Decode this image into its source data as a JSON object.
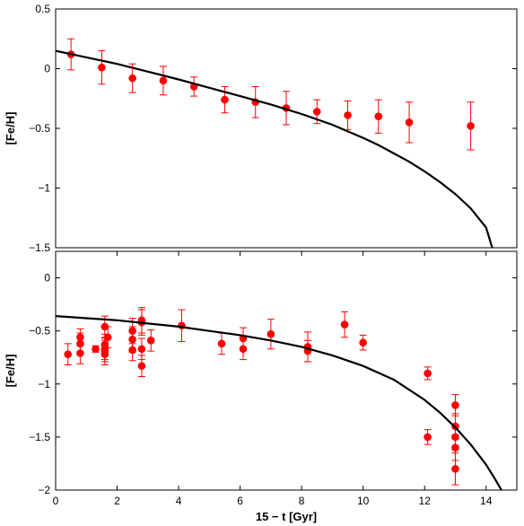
{
  "chart_data": [
    {
      "type": "scatter",
      "panel": "top",
      "xlabel": "",
      "ylabel": "[Fe/H]",
      "xlim": [
        0,
        15
      ],
      "ylim": [
        -1.5,
        0.5
      ],
      "xticks": [],
      "yticks": [
        0.5,
        0,
        -0.5,
        -1,
        -1.5
      ],
      "ytick_labels": [
        "0.5",
        "0",
        "−0.5",
        "−1",
        "−1.5"
      ],
      "grid": false,
      "legend": "none",
      "colors": {
        "points": "#ff0000",
        "model": "#000000"
      },
      "series": [
        {
          "kind": "points-with-error-bars",
          "x": [
            0.5,
            1.5,
            2.5,
            3.5,
            4.5,
            5.5,
            6.5,
            7.5,
            8.5,
            9.5,
            10.5,
            11.5,
            13.5
          ],
          "y": [
            0.12,
            0.01,
            -0.08,
            -0.1,
            -0.15,
            -0.26,
            -0.28,
            -0.33,
            -0.36,
            -0.39,
            -0.4,
            -0.45,
            -0.48
          ],
          "yerr": [
            0.13,
            0.14,
            0.12,
            0.12,
            0.08,
            0.11,
            0.13,
            0.14,
            0.1,
            0.12,
            0.14,
            0.17,
            0.2
          ]
        },
        {
          "kind": "model-curve",
          "x": [
            0,
            1,
            2,
            3,
            4,
            5,
            6,
            7,
            8,
            9,
            10,
            10.5,
            11,
            11.5,
            12,
            12.5,
            13,
            13.5,
            14,
            14.2
          ],
          "y": [
            0.15,
            0.095,
            0.04,
            -0.025,
            -0.09,
            -0.16,
            -0.23,
            -0.3,
            -0.38,
            -0.47,
            -0.58,
            -0.64,
            -0.71,
            -0.78,
            -0.86,
            -0.95,
            -1.05,
            -1.17,
            -1.33,
            -1.5
          ]
        }
      ]
    },
    {
      "type": "scatter",
      "panel": "bottom",
      "xlabel": "15 − t [Gyr]",
      "ylabel": "[Fe/H]",
      "xlim": [
        0,
        15
      ],
      "ylim": [
        -2,
        0.25
      ],
      "xticks": [
        0,
        2,
        4,
        6,
        8,
        10,
        12,
        14
      ],
      "xtick_labels": [
        "0",
        "2",
        "4",
        "6",
        "8",
        "10",
        "12",
        "14"
      ],
      "yticks": [
        0,
        -0.5,
        -1,
        -1.5,
        -2
      ],
      "ytick_labels": [
        "0",
        "−0.5",
        "−1",
        "−1.5",
        "−2"
      ],
      "grid": false,
      "legend": "none",
      "colors": {
        "points": "#ff0000",
        "model": "#000000"
      },
      "series": [
        {
          "kind": "points-with-error-bars",
          "x": [
            0.4,
            0.8,
            0.8,
            0.8,
            1.3,
            1.6,
            1.6,
            1.6,
            1.6,
            1.6,
            1.7,
            2.5,
            2.5,
            2.5,
            2.8,
            2.8,
            2.8,
            2.8,
            3.1,
            4.1,
            5.4,
            6.1,
            6.1,
            7.0,
            8.2,
            8.2,
            9.4,
            10.0,
            12.1,
            12.1,
            13.0,
            13.0,
            13.0,
            13.0,
            13.0
          ],
          "y": [
            -0.72,
            -0.56,
            -0.62,
            -0.71,
            -0.67,
            -0.46,
            -0.63,
            -0.67,
            -0.69,
            -0.72,
            -0.56,
            -0.5,
            -0.58,
            -0.68,
            -0.4,
            -0.67,
            -0.83,
            -0.42,
            -0.59,
            -0.45,
            -0.62,
            -0.57,
            -0.67,
            -0.53,
            -0.65,
            -0.69,
            -0.44,
            -0.61,
            -0.9,
            -1.5,
            -1.2,
            -1.4,
            -1.5,
            -1.6,
            -1.8
          ],
          "yerr": [
            0.1,
            0.08,
            0.1,
            0.1,
            0.03,
            0.1,
            0.1,
            0.1,
            0.1,
            0.1,
            0.1,
            0.12,
            0.12,
            0.1,
            0.12,
            0.1,
            0.1,
            0.12,
            0.1,
            0.15,
            0.1,
            0.1,
            0.1,
            0.14,
            0.14,
            0.1,
            0.12,
            0.07,
            0.06,
            0.07,
            0.1,
            0.12,
            0.12,
            0.12,
            0.15
          ]
        },
        {
          "kind": "model-curve",
          "x": [
            0,
            1,
            2,
            3,
            4,
            5,
            6,
            7,
            8,
            9,
            10,
            11,
            12,
            12.5,
            13,
            13.5,
            14,
            14.3,
            14.5
          ],
          "y": [
            -0.36,
            -0.38,
            -0.4,
            -0.43,
            -0.46,
            -0.5,
            -0.54,
            -0.59,
            -0.65,
            -0.73,
            -0.83,
            -0.96,
            -1.15,
            -1.27,
            -1.41,
            -1.57,
            -1.76,
            -1.9,
            -2.0
          ]
        }
      ]
    }
  ]
}
